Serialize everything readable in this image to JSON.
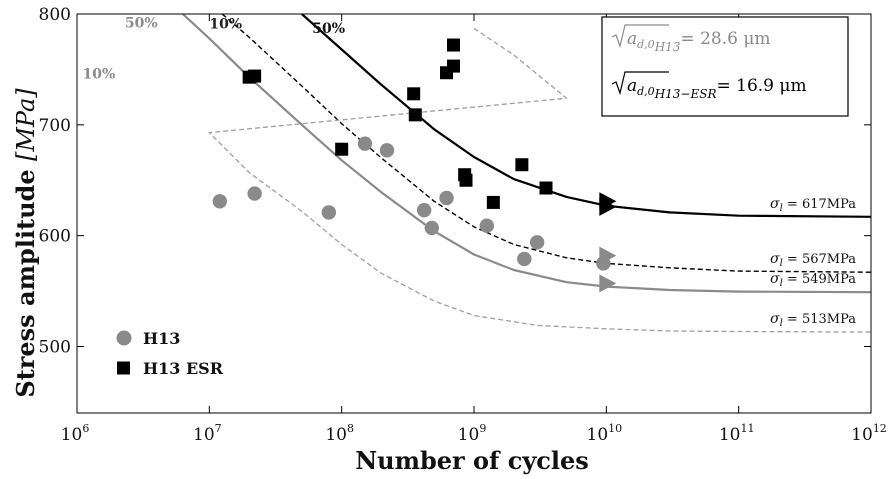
{
  "chart_data": {
    "type": "scatter",
    "title": "",
    "xlabel": "Number of cycles",
    "ylabel_main": "Stress amplitude ",
    "ylabel_unit": "[MPa]",
    "x_scale": "log",
    "xlim": [
      1000000,
      1000000000000
    ],
    "ylim": [
      440,
      800
    ],
    "x_ticks": [
      {
        "value": 1000000,
        "base": "10",
        "exp": "6"
      },
      {
        "value": 10000000,
        "base": "10",
        "exp": "7"
      },
      {
        "value": 100000000,
        "base": "10",
        "exp": "8"
      },
      {
        "value": 1000000000,
        "base": "10",
        "exp": "9"
      },
      {
        "value": 10000000000,
        "base": "10",
        "exp": "10"
      },
      {
        "value": 100000000000,
        "base": "10",
        "exp": "11"
      },
      {
        "value": 1000000000000,
        "base": "10",
        "exp": "12"
      }
    ],
    "y_ticks": [
      {
        "value": 500,
        "label": "500"
      },
      {
        "value": 600,
        "label": "600"
      },
      {
        "value": 700,
        "label": "700"
      },
      {
        "value": 800,
        "label": "800"
      }
    ],
    "grid": false,
    "legend_position": "bottom-left",
    "series": [
      {
        "name": "H13",
        "marker": "circle",
        "color": "#8a8a8a",
        "points": [
          {
            "x": 12000000,
            "y": 631
          },
          {
            "x": 22000000,
            "y": 638
          },
          {
            "x": 80000000,
            "y": 621
          },
          {
            "x": 150000000,
            "y": 683
          },
          {
            "x": 220000000,
            "y": 677
          },
          {
            "x": 420000000,
            "y": 623
          },
          {
            "x": 480000000,
            "y": 607
          },
          {
            "x": 620000000,
            "y": 634
          },
          {
            "x": 1250000000,
            "y": 609
          },
          {
            "x": 2400000000,
            "y": 579
          },
          {
            "x": 3000000000,
            "y": 594
          },
          {
            "x": 9500000000,
            "y": 575
          }
        ],
        "runouts": [
          {
            "x": 10000000000,
            "y": 582
          },
          {
            "x": 10000000000,
            "y": 557
          }
        ]
      },
      {
        "name": "H13 ESR",
        "marker": "square",
        "color": "#000000",
        "points": [
          {
            "x": 20000000,
            "y": 743
          },
          {
            "x": 22000000,
            "y": 744
          },
          {
            "x": 100000000,
            "y": 678
          },
          {
            "x": 350000000,
            "y": 728
          },
          {
            "x": 360000000,
            "y": 709
          },
          {
            "x": 620000000,
            "y": 747
          },
          {
            "x": 700000000,
            "y": 753
          },
          {
            "x": 700000000,
            "y": 772
          },
          {
            "x": 850000000,
            "y": 655
          },
          {
            "x": 870000000,
            "y": 650
          },
          {
            "x": 1400000000,
            "y": 630
          },
          {
            "x": 2300000000,
            "y": 664
          },
          {
            "x": 3500000000,
            "y": 643
          }
        ],
        "runouts": [
          {
            "x": 10000000000,
            "y": 631
          },
          {
            "x": 10000000000,
            "y": 626
          }
        ]
      }
    ],
    "curves": [
      {
        "id": "esr-50",
        "style": "solid",
        "color": "#000000",
        "width": 2.2,
        "limit": 617,
        "limit_label": "σl = 617MPa",
        "points": [
          [
            50000000,
            800
          ],
          [
            100000000,
            768
          ],
          [
            200000000,
            736
          ],
          [
            500000000,
            696
          ],
          [
            1000000000,
            671
          ],
          [
            2000000000,
            651
          ],
          [
            5000000000,
            635
          ],
          [
            10000000000,
            627
          ],
          [
            30000000000,
            621
          ],
          [
            100000000000,
            618
          ],
          [
            1000000000000,
            617
          ]
        ]
      },
      {
        "id": "esr-10",
        "style": "dashed",
        "color": "#000000",
        "width": 1.4,
        "limit": 567,
        "limit_label": "σl = 567MPa",
        "points": [
          [
            12500000,
            800
          ],
          [
            20000000,
            779
          ],
          [
            50000000,
            735
          ],
          [
            100000000,
            701
          ],
          [
            200000000,
            670
          ],
          [
            500000000,
            631
          ],
          [
            1000000000,
            608
          ],
          [
            2000000000,
            592
          ],
          [
            5000000000,
            580
          ],
          [
            10000000000,
            575
          ],
          [
            30000000000,
            571
          ],
          [
            100000000000,
            568
          ],
          [
            1000000000000,
            567
          ]
        ]
      },
      {
        "id": "h13-50",
        "style": "solid",
        "color": "#8a8a8a",
        "width": 2.2,
        "limit": 549,
        "limit_label": "σl = 549MPa",
        "points": [
          [
            6300000,
            800
          ],
          [
            10000000,
            778
          ],
          [
            20000000,
            743
          ],
          [
            50000000,
            700
          ],
          [
            100000000,
            668
          ],
          [
            200000000,
            639
          ],
          [
            500000000,
            604
          ],
          [
            1000000000,
            583
          ],
          [
            2000000000,
            569
          ],
          [
            5000000000,
            558
          ],
          [
            10000000000,
            554
          ],
          [
            30000000000,
            551
          ],
          [
            100000000000,
            549.5
          ],
          [
            1000000000000,
            549
          ]
        ]
      },
      {
        "id": "h13-10",
        "style": "dashed",
        "color": "#a0a0a0",
        "width": 1.3,
        "limit": 513,
        "limit_label": "σl = 513MPa",
        "points": [
          [
            1000000000,
            787
          ],
          [
            2000000000,
            763
          ],
          [
            5000000000,
            724
          ],
          [
            10000000,
            693
          ],
          [
            20000000,
            657
          ],
          [
            50000000,
            622
          ],
          [
            100000000,
            592
          ],
          [
            200000000,
            566
          ],
          [
            500000000,
            541
          ],
          [
            1000000000,
            528
          ],
          [
            3000000000,
            519
          ],
          [
            10000000000,
            516
          ],
          [
            30000000000,
            514
          ],
          [
            100000000000,
            513.5
          ],
          [
            1000000000000,
            513
          ]
        ]
      }
    ],
    "percent_labels": [
      {
        "text": "50%",
        "x": 2300000,
        "y": 788,
        "color": "#8a8a8a"
      },
      {
        "text": "10%",
        "x": 1100000,
        "y": 742,
        "color": "#8a8a8a"
      },
      {
        "text": "10%",
        "x": 10000000,
        "y": 787,
        "color": "#222222"
      },
      {
        "text": "50%",
        "x": 60000000,
        "y": 783,
        "color": "#111111"
      }
    ],
    "annotation": {
      "line1_sym": "a",
      "line1_sub": "d,0",
      "line1_tag": "H13",
      "line1_value": "= 28.6 μm",
      "line1_color": "#8a8a8a",
      "line2_sym": "a",
      "line2_sub": "d,0",
      "line2_tag": "H13−ESR",
      "line2_value": "= 16.9 μm",
      "line2_color": "#000000"
    },
    "legend": [
      {
        "label": "H13",
        "marker": "circle",
        "color": "#8a8a8a"
      },
      {
        "label": "H13 ESR",
        "marker": "square",
        "color": "#000000"
      }
    ]
  }
}
